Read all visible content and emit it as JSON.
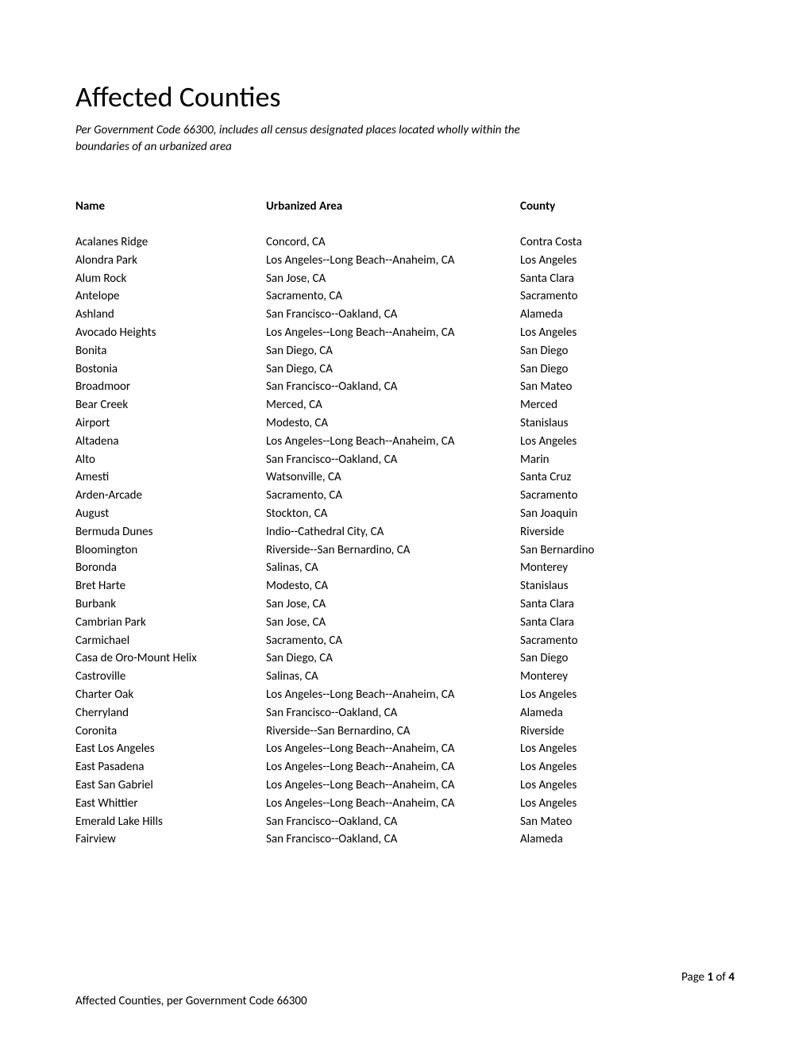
{
  "title": "Affected Counties",
  "subtitle": "Per Government Code 66300, includes all census designated places located wholly within the boundaries of an urbanized area",
  "headers": {
    "name": "Name",
    "area": "Urbanized Area",
    "county": "County"
  },
  "rows": [
    {
      "name": "Acalanes Ridge",
      "area": "Concord, CA",
      "county": "Contra Costa"
    },
    {
      "name": "Alondra Park",
      "area": "Los Angeles--Long Beach--Anaheim, CA",
      "county": "Los Angeles"
    },
    {
      "name": "Alum Rock",
      "area": "San Jose, CA",
      "county": "Santa Clara"
    },
    {
      "name": "Antelope",
      "area": "Sacramento, CA",
      "county": "Sacramento"
    },
    {
      "name": "Ashland",
      "area": "San Francisco--Oakland, CA",
      "county": "Alameda"
    },
    {
      "name": "Avocado Heights",
      "area": "Los Angeles--Long Beach--Anaheim, CA",
      "county": "Los Angeles"
    },
    {
      "name": "Bonita",
      "area": "San Diego, CA",
      "county": "San Diego"
    },
    {
      "name": "Bostonia",
      "area": "San Diego, CA",
      "county": "San Diego"
    },
    {
      "name": "Broadmoor",
      "area": "San Francisco--Oakland, CA",
      "county": "San Mateo"
    },
    {
      "name": "Bear Creek",
      "area": "Merced, CA",
      "county": "Merced"
    },
    {
      "name": "Airport",
      "area": "Modesto, CA",
      "county": "Stanislaus"
    },
    {
      "name": "Altadena",
      "area": "Los Angeles--Long Beach--Anaheim, CA",
      "county": "Los Angeles"
    },
    {
      "name": "Alto",
      "area": "San Francisco--Oakland, CA",
      "county": "Marin"
    },
    {
      "name": "Amesti",
      "area": "Watsonville, CA",
      "county": "Santa Cruz"
    },
    {
      "name": "Arden-Arcade",
      "area": "Sacramento, CA",
      "county": "Sacramento"
    },
    {
      "name": "August",
      "area": "Stockton, CA",
      "county": "San Joaquin"
    },
    {
      "name": "Bermuda Dunes",
      "area": "Indio--Cathedral City, CA",
      "county": "Riverside"
    },
    {
      "name": "Bloomington",
      "area": "Riverside--San Bernardino, CA",
      "county": "San Bernardino"
    },
    {
      "name": "Boronda",
      "area": "Salinas, CA",
      "county": "Monterey"
    },
    {
      "name": "Bret Harte",
      "area": "Modesto, CA",
      "county": "Stanislaus"
    },
    {
      "name": "Burbank",
      "area": "San Jose, CA",
      "county": "Santa Clara"
    },
    {
      "name": "Cambrian Park",
      "area": "San Jose, CA",
      "county": "Santa Clara"
    },
    {
      "name": "Carmichael",
      "area": "Sacramento, CA",
      "county": "Sacramento"
    },
    {
      "name": "Casa de Oro-Mount Helix",
      "area": "San Diego, CA",
      "county": "San Diego"
    },
    {
      "name": "Castroville",
      "area": "Salinas, CA",
      "county": "Monterey"
    },
    {
      "name": "Charter Oak",
      "area": "Los Angeles--Long Beach--Anaheim, CA",
      "county": "Los Angeles"
    },
    {
      "name": "Cherryland",
      "area": "San Francisco--Oakland, CA",
      "county": "Alameda"
    },
    {
      "name": "Coronita",
      "area": "Riverside--San Bernardino, CA",
      "county": "Riverside"
    },
    {
      "name": "East Los Angeles",
      "area": "Los Angeles--Long Beach--Anaheim, CA",
      "county": "Los Angeles"
    },
    {
      "name": "East Pasadena",
      "area": "Los Angeles--Long Beach--Anaheim, CA",
      "county": "Los Angeles"
    },
    {
      "name": "East San Gabriel",
      "area": "Los Angeles--Long Beach--Anaheim, CA",
      "county": "Los Angeles"
    },
    {
      "name": "East Whittier",
      "area": "Los Angeles--Long Beach--Anaheim, CA",
      "county": "Los Angeles"
    },
    {
      "name": "Emerald Lake Hills",
      "area": "San Francisco--Oakland, CA",
      "county": "San Mateo"
    },
    {
      "name": "Fairview",
      "area": "San Francisco--Oakland, CA",
      "county": "Alameda"
    }
  ],
  "footer": "Affected Counties, per Government Code 66300",
  "page": {
    "label_prefix": "Page ",
    "current": "1",
    "separator": " of ",
    "total": "4"
  }
}
